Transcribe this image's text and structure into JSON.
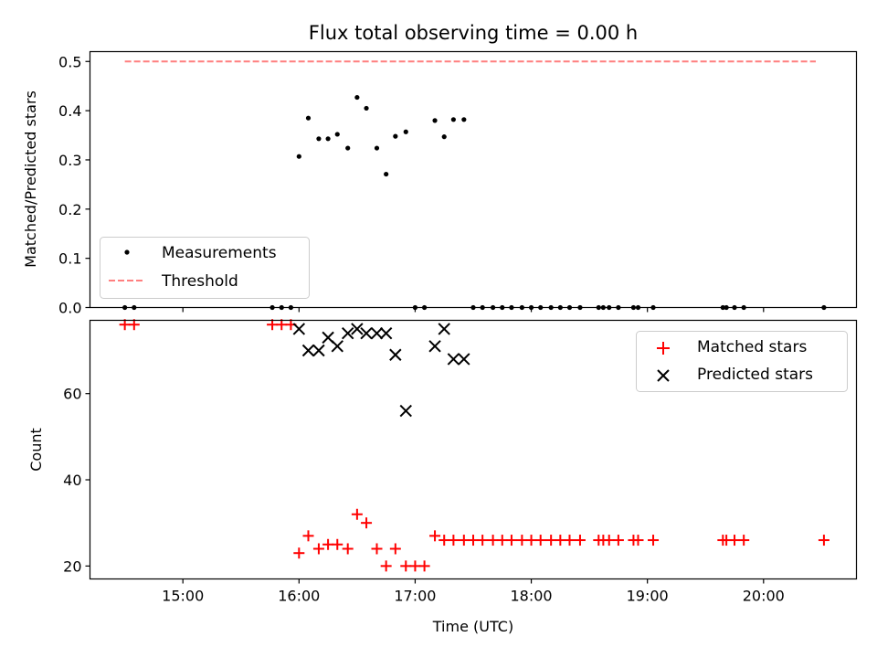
{
  "chart_data": [
    {
      "type": "scatter",
      "title": "Flux total observing time = 0.00 h",
      "xlabel": "",
      "ylabel": "Matched/Predicted stars",
      "xlim": [
        14.2,
        20.8
      ],
      "ylim": [
        0.0,
        0.52
      ],
      "yticks": [
        0.0,
        0.1,
        0.2,
        0.3,
        0.4,
        0.5
      ],
      "ytick_labels": [
        "0.0",
        "0.1",
        "0.2",
        "0.3",
        "0.4",
        "0.5"
      ],
      "xticks": [
        15,
        16,
        17,
        18,
        19,
        20
      ],
      "grid": false,
      "legend": {
        "placement": "lower-left",
        "entries": [
          "Measurements",
          "Threshold"
        ]
      },
      "series": [
        {
          "name": "Measurements",
          "style": "dot",
          "color": "#000000",
          "x": [
            14.5,
            14.58,
            15.77,
            15.85,
            15.93,
            16.0,
            16.08,
            16.17,
            16.25,
            16.33,
            16.42,
            16.5,
            16.58,
            16.67,
            16.75,
            16.83,
            16.92,
            17.0,
            17.08,
            17.17,
            17.25,
            17.33,
            17.42,
            17.5,
            17.58,
            17.67,
            17.75,
            17.83,
            17.92,
            18.0,
            18.08,
            18.17,
            18.25,
            18.33,
            18.42,
            18.58,
            18.62,
            18.67,
            18.75,
            18.88,
            18.92,
            19.05,
            19.65,
            19.68,
            19.75,
            19.83,
            20.52
          ],
          "y": [
            0.0,
            0.0,
            0.0,
            0.0,
            0.0,
            0.307,
            0.385,
            0.343,
            0.343,
            0.352,
            0.324,
            0.427,
            0.405,
            0.324,
            0.271,
            0.348,
            0.357,
            0.0,
            0.0,
            0.38,
            0.347,
            0.382,
            0.382,
            0.0,
            0.0,
            0.0,
            0.0,
            0.0,
            0.0,
            0.0,
            0.0,
            0.0,
            0.0,
            0.0,
            0.0,
            0.0,
            0.0,
            0.0,
            0.0,
            0.0,
            0.0,
            0.0,
            0.0,
            0.0,
            0.0,
            0.0,
            0.0
          ]
        },
        {
          "name": "Threshold",
          "style": "dashed-line",
          "color": "#ff7f7f",
          "x": [
            14.5,
            20.45
          ],
          "y": [
            0.5,
            0.5
          ]
        }
      ]
    },
    {
      "type": "scatter",
      "title": "",
      "xlabel": "Time (UTC)",
      "ylabel": "Count",
      "xlim": [
        14.2,
        20.8
      ],
      "ylim": [
        17,
        77
      ],
      "yticks": [
        20,
        40,
        60
      ],
      "ytick_labels": [
        "20",
        "40",
        "60"
      ],
      "xticks": [
        15,
        16,
        17,
        18,
        19,
        20
      ],
      "xtick_labels": [
        "15:00",
        "16:00",
        "17:00",
        "18:00",
        "19:00",
        "20:00"
      ],
      "grid": false,
      "legend": {
        "placement": "upper-right",
        "entries": [
          "Matched stars",
          "Predicted stars"
        ]
      },
      "series": [
        {
          "name": "Matched stars",
          "style": "plus",
          "color": "#ff0000",
          "x": [
            14.5,
            14.58,
            15.77,
            15.85,
            15.93,
            16.0,
            16.08,
            16.17,
            16.25,
            16.33,
            16.42,
            16.5,
            16.58,
            16.67,
            16.75,
            16.83,
            16.92,
            17.0,
            17.08,
            17.17,
            17.25,
            17.33,
            17.42,
            17.5,
            17.58,
            17.67,
            17.75,
            17.83,
            17.92,
            18.0,
            18.08,
            18.17,
            18.25,
            18.33,
            18.42,
            18.58,
            18.62,
            18.67,
            18.75,
            18.88,
            18.92,
            19.05,
            19.65,
            19.68,
            19.75,
            19.83,
            20.52
          ],
          "y": [
            76,
            76,
            76,
            76,
            76,
            23,
            27,
            24,
            25,
            25,
            24,
            32,
            30,
            24,
            20,
            24,
            20,
            20,
            20,
            27,
            26,
            26,
            26,
            26,
            26,
            26,
            26,
            26,
            26,
            26,
            26,
            26,
            26,
            26,
            26,
            26,
            26,
            26,
            26,
            26,
            26,
            26,
            26,
            26,
            26,
            26,
            26
          ]
        },
        {
          "name": "Predicted stars",
          "style": "x",
          "color": "#000000",
          "x": [
            16.0,
            16.08,
            16.17,
            16.25,
            16.33,
            16.42,
            16.5,
            16.58,
            16.67,
            16.75,
            16.83,
            16.92,
            17.17,
            17.25,
            17.33,
            17.42
          ],
          "y": [
            75,
            70,
            70,
            73,
            71,
            74,
            75,
            74,
            74,
            74,
            69,
            56,
            71,
            75,
            68,
            68
          ]
        }
      ]
    }
  ]
}
